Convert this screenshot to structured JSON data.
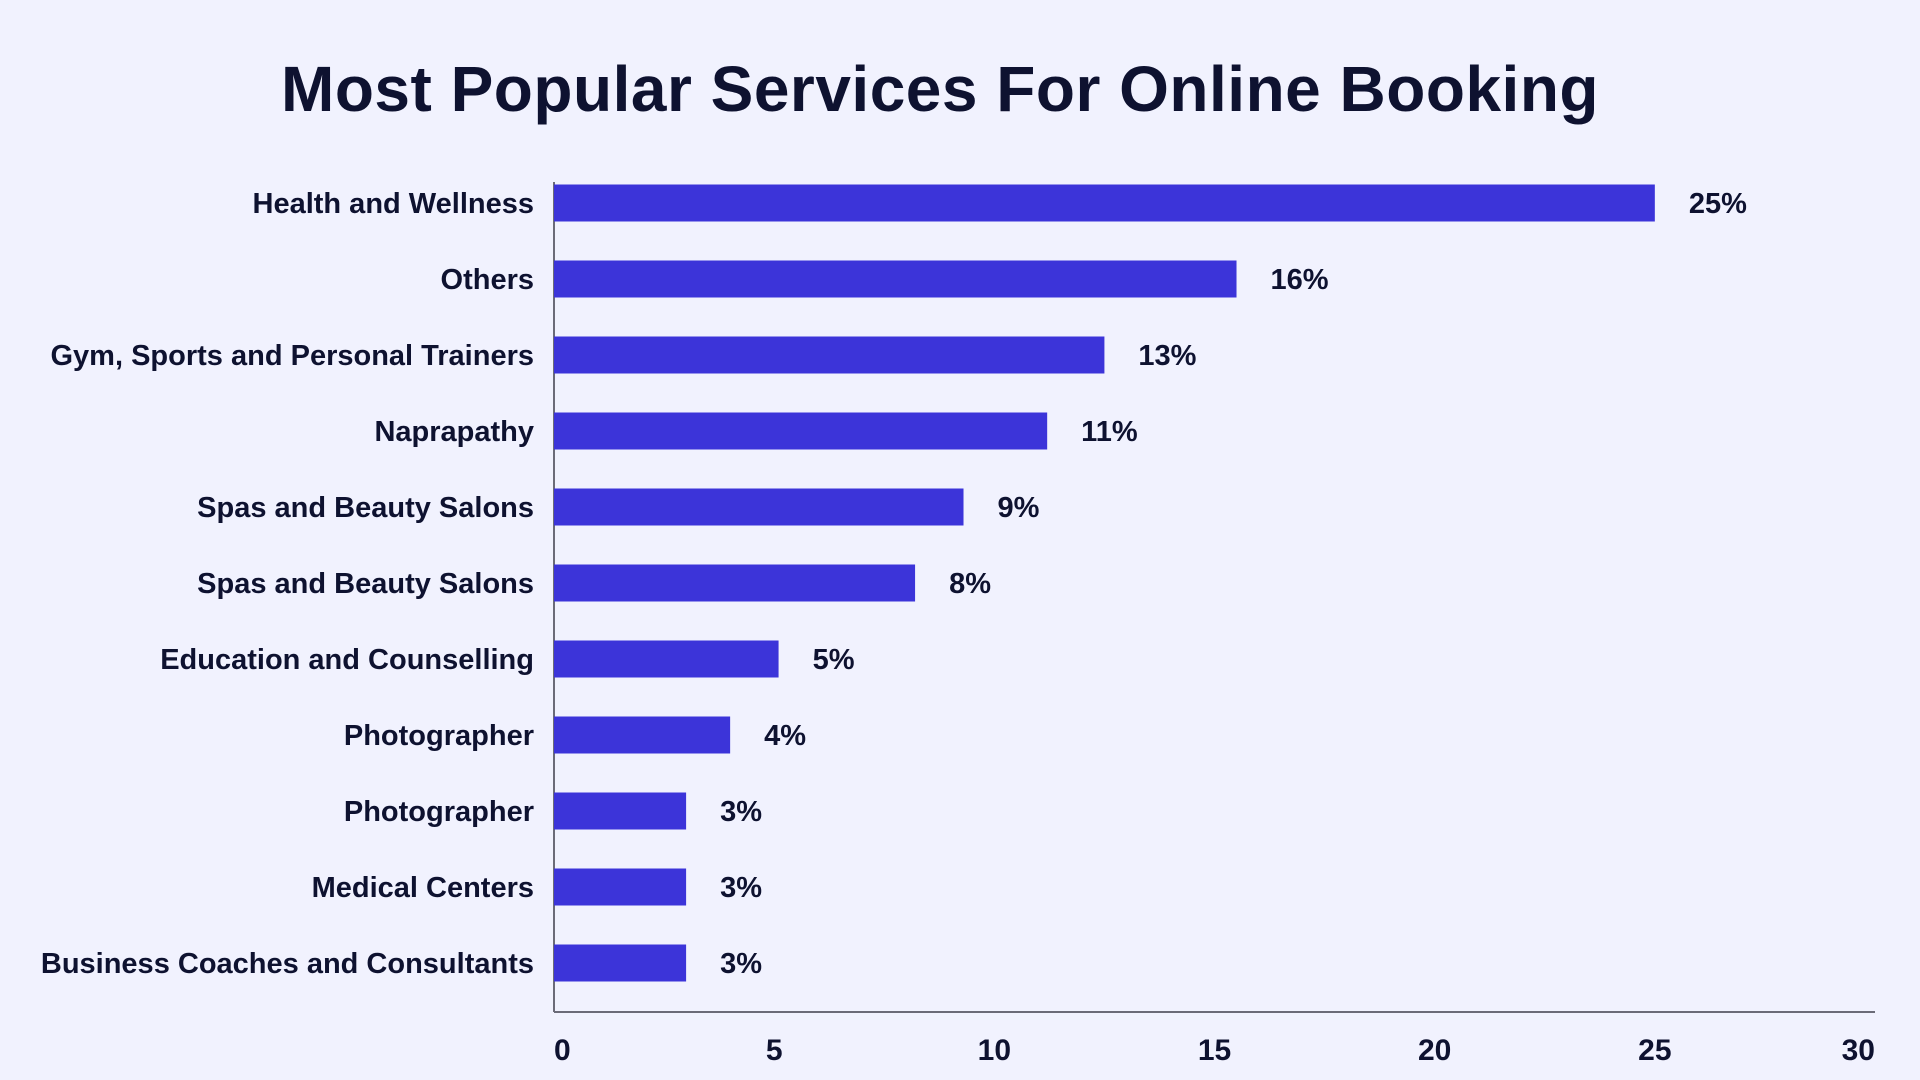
{
  "chart_data": {
    "type": "bar",
    "orientation": "horizontal",
    "title": "Most Popular Services For Online Booking",
    "categories": [
      "Health and Wellness",
      "Others",
      "Gym, Sports and Personal Trainers",
      "Naprapathy",
      "Spas and Beauty Salons",
      "Spas and Beauty Salons",
      "Education and Counselling",
      "Photographer",
      "Photographer",
      "Medical Centers",
      "Business Coaches and Consultants"
    ],
    "values": [
      25,
      15.5,
      12.5,
      11.2,
      9.3,
      8.2,
      5.1,
      4,
      3,
      3,
      3
    ],
    "value_labels": [
      "25%",
      "16%",
      "13%",
      "11%",
      "9%",
      "8%",
      "5%",
      "4%",
      "3%",
      "3%",
      "3%"
    ],
    "xlim": [
      0,
      30
    ],
    "xticks": [
      "0",
      "5",
      "10",
      "15",
      "20",
      "25",
      "30"
    ],
    "xlabel": "",
    "ylabel": "",
    "grid": false,
    "bar_color": "#3c34d9"
  }
}
